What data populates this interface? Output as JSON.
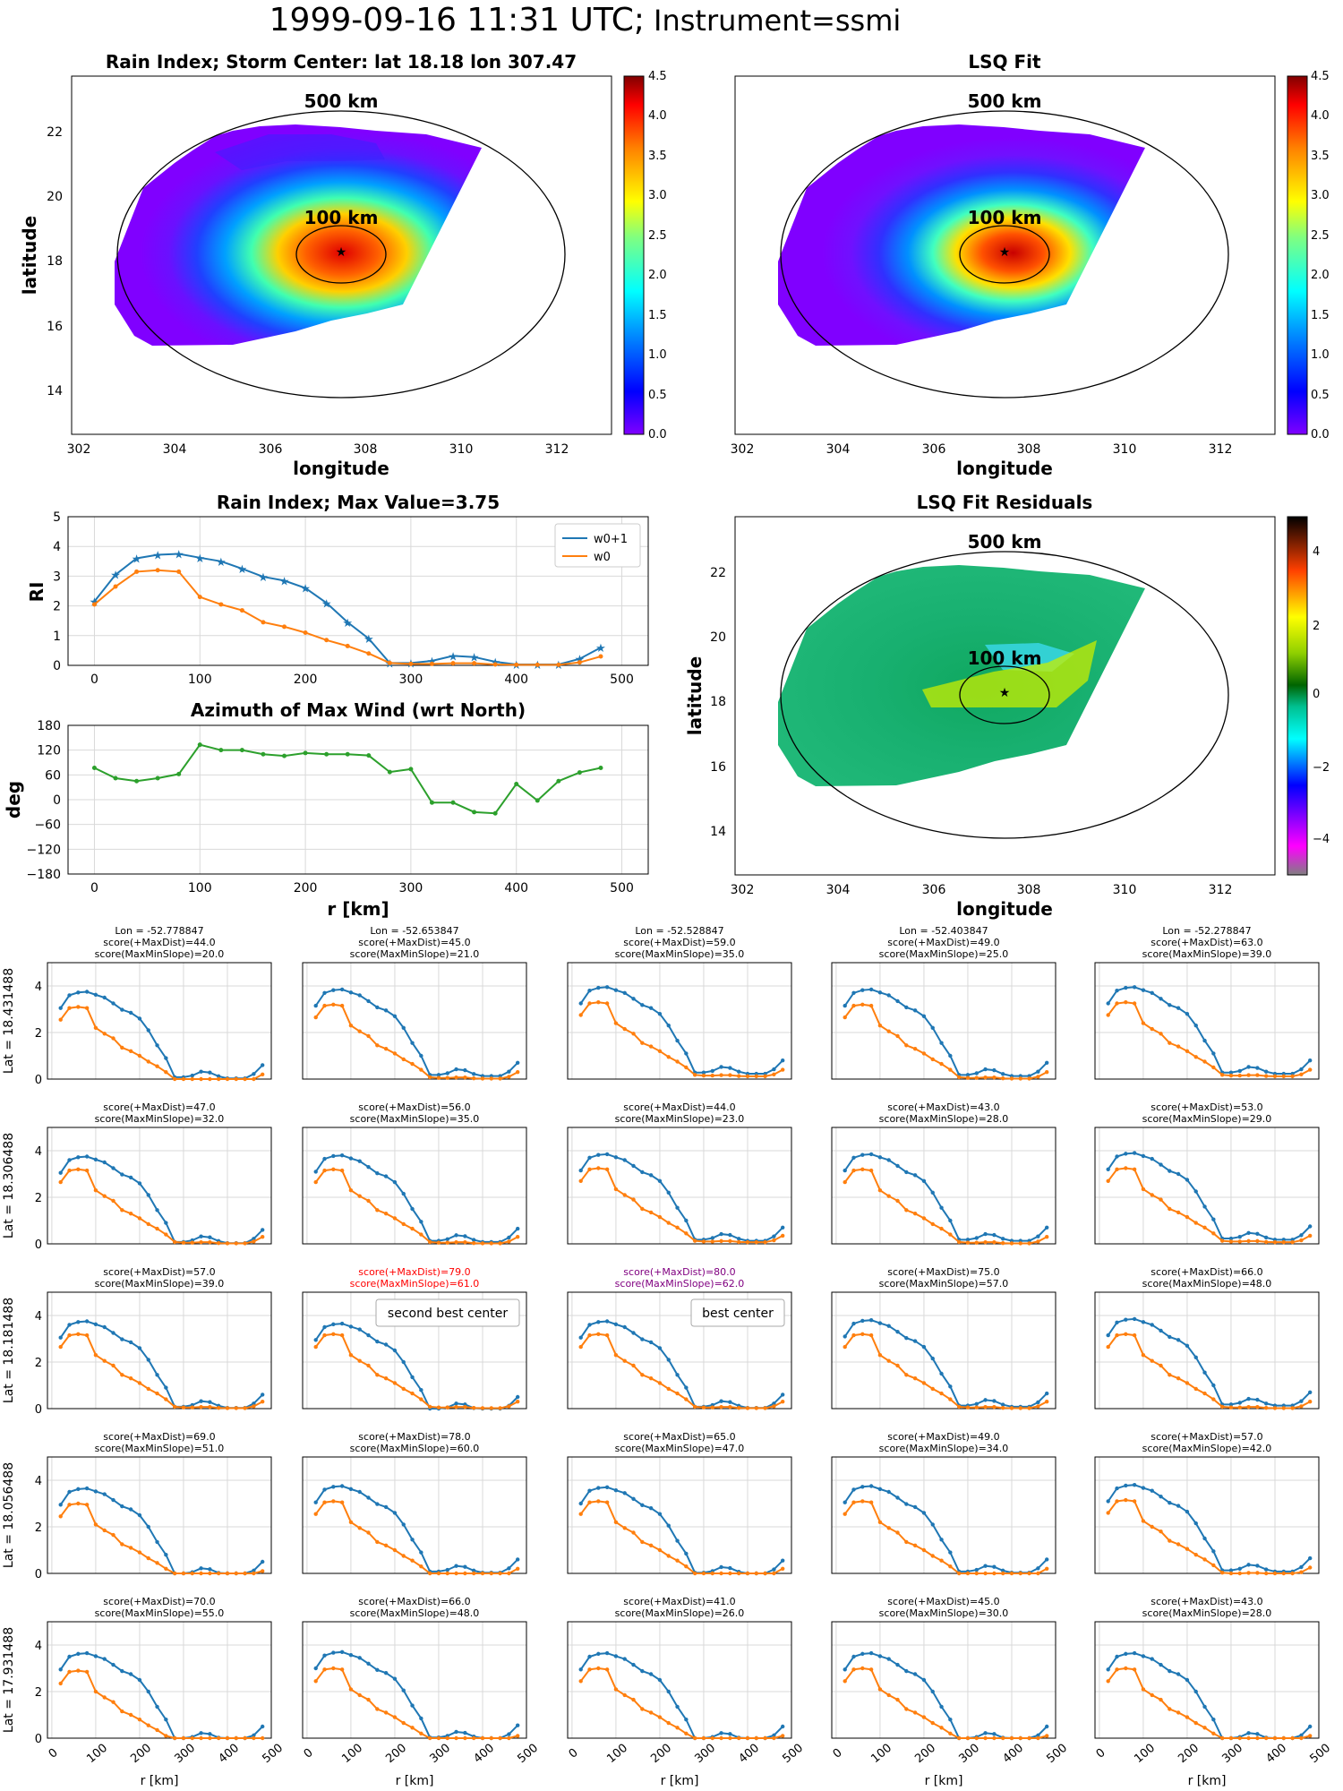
{
  "title": {
    "main": "1999-09-16 11:31 UTC;",
    "instrument": "Instrument=ssmi"
  },
  "colors": {
    "blue": "#1f77b4",
    "orange": "#ff7f0e",
    "green": "#2ca02c",
    "red": "#ff0000",
    "purple": "#800080",
    "grid": "#d9d9d9"
  },
  "maps": [
    {
      "title": "Rain Index; Storm Center: lat 18.18 lon 307.47",
      "xlabel": "longitude",
      "ylabel": "latitude",
      "colormap": "jet",
      "colorbar_ticks": [
        "0.0",
        "0.5",
        "1.0",
        "1.5",
        "2.0",
        "2.5",
        "3.0",
        "3.5",
        "4.0",
        "4.5"
      ],
      "ring_labels": [
        "500 km",
        "100 km"
      ],
      "x_ticks": [
        "302",
        "304",
        "306",
        "308",
        "310",
        "312"
      ],
      "y_ticks": [
        "14",
        "16",
        "18",
        "20",
        "22"
      ]
    },
    {
      "title": "LSQ Fit",
      "xlabel": "longitude",
      "ylabel": "",
      "colormap": "jet",
      "colorbar_ticks": [
        "0.0",
        "0.5",
        "1.0",
        "1.5",
        "2.0",
        "2.5",
        "3.0",
        "3.5",
        "4.0",
        "4.5"
      ],
      "ring_labels": [
        "500 km",
        "100 km"
      ],
      "x_ticks": [
        "302",
        "304",
        "306",
        "308",
        "310",
        "312"
      ],
      "y_ticks": []
    },
    {
      "title": "LSQ Fit Residuals",
      "xlabel": "longitude",
      "ylabel": "latitude",
      "colormap": "diverging",
      "colorbar_ticks": [
        "4",
        "2",
        "0",
        "−2",
        "−4"
      ],
      "ring_labels": [
        "500 km",
        "100 km"
      ],
      "x_ticks": [
        "302",
        "304",
        "306",
        "308",
        "310",
        "312"
      ],
      "y_ticks": [
        "14",
        "16",
        "18",
        "20",
        "22"
      ]
    }
  ],
  "chart_data": {
    "type": "line",
    "rain_index": {
      "title": "Rain Index; Max Value=3.75",
      "ylabel": "RI",
      "x": [
        0,
        20,
        40,
        60,
        80,
        100,
        120,
        140,
        160,
        180,
        200,
        220,
        240,
        260,
        280,
        300,
        320,
        340,
        360,
        380,
        400,
        420,
        440,
        460,
        480
      ],
      "ylim": [
        0,
        5
      ],
      "y_ticks": [
        "0",
        "1",
        "2",
        "3",
        "4",
        "5"
      ],
      "x_ticks": [
        "0",
        "100",
        "200",
        "300",
        "400",
        "500"
      ],
      "series": [
        {
          "name": "w0+1",
          "values": [
            2.15,
            3.05,
            3.6,
            3.72,
            3.75,
            3.62,
            3.5,
            3.25,
            2.98,
            2.85,
            2.6,
            2.1,
            1.45,
            0.9,
            0.08,
            0.08,
            0.15,
            0.32,
            0.28,
            0.12,
            0.03,
            0.03,
            0.03,
            0.22,
            0.6
          ]
        },
        {
          "name": "w0",
          "values": [
            2.05,
            2.65,
            3.15,
            3.2,
            3.15,
            2.3,
            2.05,
            1.85,
            1.45,
            1.3,
            1.1,
            0.85,
            0.65,
            0.4,
            0.08,
            0.05,
            0.05,
            0.07,
            0.07,
            0.03,
            0.02,
            0.02,
            0.02,
            0.1,
            0.3
          ]
        }
      ]
    },
    "azimuth": {
      "title": "Azimuth of Max Wind (wrt North)",
      "ylabel": "deg",
      "xlabel": "r [km]",
      "ylim": [
        -180,
        180
      ],
      "y_ticks": [
        "180",
        "120",
        "60",
        "0",
        "−60",
        "−120",
        "−180"
      ],
      "x_ticks": [
        "0",
        "100",
        "200",
        "300",
        "400",
        "500"
      ],
      "x": [
        0,
        20,
        40,
        60,
        80,
        100,
        120,
        140,
        160,
        180,
        200,
        220,
        240,
        260,
        280,
        300,
        320,
        340,
        360,
        380,
        400,
        420,
        440,
        460,
        480
      ],
      "values": [
        77,
        52,
        45,
        52,
        62,
        133,
        120,
        120,
        110,
        106,
        113,
        110,
        110,
        107,
        67,
        74,
        -7,
        -7,
        -30,
        -33,
        38,
        -2,
        45,
        66,
        77
      ]
    },
    "grid_panels": {
      "ylabels": [
        "Lat = 18.431488",
        "Lat = 18.306488",
        "Lat = 18.181488",
        "Lat = 18.056488",
        "Lat = 17.931488"
      ],
      "xlabel": "r [km]",
      "x_ticks": [
        "0",
        "100",
        "200",
        "300",
        "400",
        "500"
      ],
      "y_ticks": [
        "0",
        "2",
        "4"
      ],
      "headers": [
        [
          [
            "Lon = -52.778847",
            "score(+MaxDist)=44.0",
            "score(MaxMinSlope)=20.0"
          ],
          [
            "Lon = -52.653847",
            "score(+MaxDist)=45.0",
            "score(MaxMinSlope)=21.0"
          ],
          [
            "Lon = -52.528847",
            "score(+MaxDist)=59.0",
            "score(MaxMinSlope)=35.0"
          ],
          [
            "Lon = -52.403847",
            "score(+MaxDist)=49.0",
            "score(MaxMinSlope)=25.0"
          ],
          [
            "Lon = -52.278847",
            "score(+MaxDist)=63.0",
            "score(MaxMinSlope)=39.0"
          ]
        ],
        [
          [
            "score(+MaxDist)=47.0",
            "score(MaxMinSlope)=32.0"
          ],
          [
            "score(+MaxDist)=56.0",
            "score(MaxMinSlope)=35.0"
          ],
          [
            "score(+MaxDist)=44.0",
            "score(MaxMinSlope)=23.0"
          ],
          [
            "score(+MaxDist)=43.0",
            "score(MaxMinSlope)=28.0"
          ],
          [
            "score(+MaxDist)=53.0",
            "score(MaxMinSlope)=29.0"
          ]
        ],
        [
          [
            "score(+MaxDist)=57.0",
            "score(MaxMinSlope)=39.0"
          ],
          [
            "score(+MaxDist)=79.0",
            "score(MaxMinSlope)=61.0"
          ],
          [
            "score(+MaxDist)=80.0",
            "score(MaxMinSlope)=62.0"
          ],
          [
            "score(+MaxDist)=75.0",
            "score(MaxMinSlope)=57.0"
          ],
          [
            "score(+MaxDist)=66.0",
            "score(MaxMinSlope)=48.0"
          ]
        ],
        [
          [
            "score(+MaxDist)=69.0",
            "score(MaxMinSlope)=51.0"
          ],
          [
            "score(+MaxDist)=78.0",
            "score(MaxMinSlope)=60.0"
          ],
          [
            "score(+MaxDist)=65.0",
            "score(MaxMinSlope)=47.0"
          ],
          [
            "score(+MaxDist)=49.0",
            "score(MaxMinSlope)=34.0"
          ],
          [
            "score(+MaxDist)=57.0",
            "score(MaxMinSlope)=42.0"
          ]
        ],
        [
          [
            "score(+MaxDist)=70.0",
            "score(MaxMinSlope)=55.0"
          ],
          [
            "score(+MaxDist)=66.0",
            "score(MaxMinSlope)=48.0"
          ],
          [
            "score(+MaxDist)=41.0",
            "score(MaxMinSlope)=26.0"
          ],
          [
            "score(+MaxDist)=45.0",
            "score(MaxMinSlope)=30.0"
          ],
          [
            "score(+MaxDist)=43.0",
            "score(MaxMinSlope)=28.0"
          ]
        ]
      ],
      "header_colors": [
        [
          "",
          "",
          "",
          "",
          ""
        ],
        [
          "",
          "",
          "",
          "",
          ""
        ],
        [
          "",
          "red",
          "purple",
          "",
          ""
        ],
        [
          "",
          "",
          "",
          "",
          ""
        ],
        [
          "",
          "",
          "",
          "",
          ""
        ]
      ],
      "annotations": [
        {
          "row": 2,
          "col": 1,
          "text": "second best center"
        },
        {
          "row": 2,
          "col": 2,
          "text": "best center"
        }
      ],
      "x": [
        20,
        40,
        60,
        80,
        100,
        120,
        140,
        160,
        180,
        200,
        220,
        240,
        260,
        280,
        300,
        320,
        340,
        360,
        380,
        400,
        420,
        440,
        460,
        480
      ],
      "ylim": [
        0,
        5
      ]
    }
  }
}
